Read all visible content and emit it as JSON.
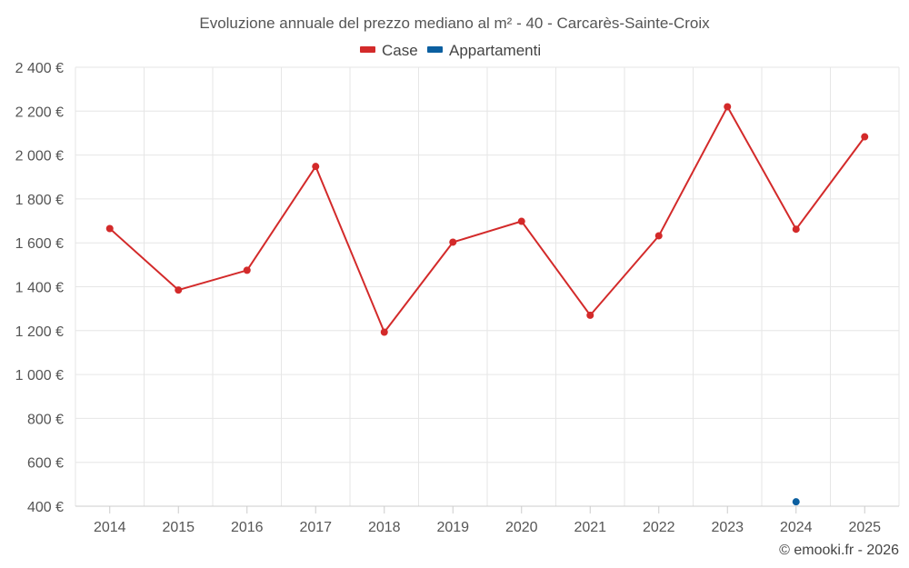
{
  "chart_data": {
    "type": "line",
    "title": "Evoluzione annuale del prezzo mediano al m² - 40 - Carcarès-Sainte-Croix",
    "categories": [
      "2014",
      "2015",
      "2016",
      "2017",
      "2018",
      "2019",
      "2020",
      "2021",
      "2022",
      "2023",
      "2024",
      "2025"
    ],
    "series": [
      {
        "name": "Case",
        "color": "#d32a2a",
        "values": [
          1665,
          1385,
          1475,
          1948,
          1193,
          1603,
          1698,
          1270,
          1632,
          2220,
          1662,
          2083
        ]
      },
      {
        "name": "Appartamenti",
        "color": "#0b5fa0",
        "values": [
          null,
          null,
          null,
          null,
          null,
          null,
          null,
          null,
          null,
          null,
          420,
          null
        ]
      }
    ],
    "ylim": [
      400,
      2400
    ],
    "yticks": [
      400,
      600,
      800,
      1000,
      1200,
      1400,
      1600,
      1800,
      2000,
      2200,
      2400
    ],
    "ytick_labels": [
      "400 €",
      "600 €",
      "800 €",
      "1 000 €",
      "1 200 €",
      "1 400 €",
      "1 600 €",
      "1 800 €",
      "2 000 €",
      "2 200 €",
      "2 400 €"
    ],
    "xlabel": "",
    "ylabel": "",
    "grid": true,
    "legend_position": "top-center"
  },
  "credit": "© emooki.fr - 2026"
}
